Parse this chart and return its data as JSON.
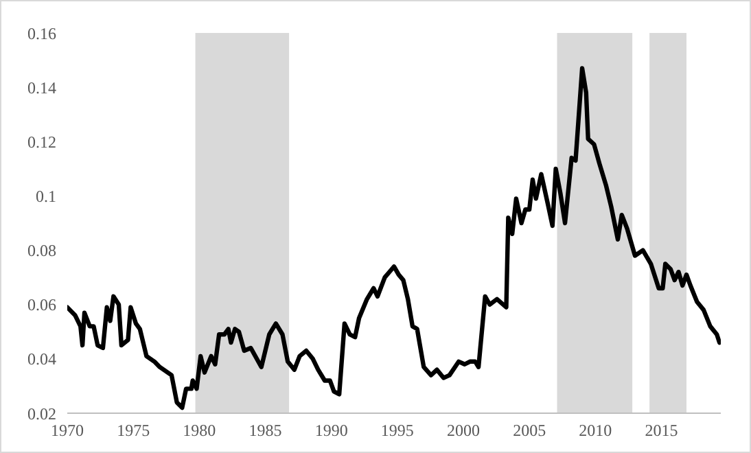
{
  "chart_data": {
    "type": "line",
    "xlim": [
      1970,
      2019.5
    ],
    "xticks": [
      1970,
      1975,
      1980,
      1985,
      1990,
      1995,
      2000,
      2005,
      2010,
      2015
    ],
    "ylim": [
      0.02,
      0.16
    ],
    "yticks": [
      0.02,
      0.04,
      0.06,
      0.08,
      0.1,
      0.12,
      0.14,
      0.16
    ],
    "grid": false,
    "legend": false,
    "marker": "none",
    "line_style": "solid",
    "bands": [
      {
        "axis": "x",
        "from": 1979.7,
        "to": 1986.8,
        "color": "#d9d9d9"
      },
      {
        "axis": "x",
        "from": 2007.1,
        "to": 2012.8,
        "color": "#d9d9d9"
      },
      {
        "axis": "x",
        "from": 2014.1,
        "to": 2016.9,
        "color": "#d9d9d9"
      }
    ],
    "series": [
      {
        "color": "#000000",
        "x": [
          1970.0,
          1970.6,
          1971.0,
          1971.15,
          1971.3,
          1971.7,
          1972.0,
          1972.3,
          1972.7,
          1973.0,
          1973.25,
          1973.5,
          1973.9,
          1974.1,
          1974.6,
          1974.8,
          1975.2,
          1975.5,
          1976.0,
          1976.6,
          1977.0,
          1977.6,
          1977.9,
          1978.3,
          1978.7,
          1979.0,
          1979.4,
          1979.5,
          1979.8,
          1980.1,
          1980.4,
          1980.9,
          1981.2,
          1981.5,
          1981.9,
          1982.2,
          1982.4,
          1982.7,
          1983.0,
          1983.4,
          1983.9,
          1984.7,
          1985.3,
          1985.8,
          1986.3,
          1986.7,
          1987.2,
          1987.6,
          1988.1,
          1988.6,
          1989.0,
          1989.5,
          1989.9,
          1990.2,
          1990.6,
          1991.0,
          1991.4,
          1991.8,
          1992.1,
          1992.7,
          1993.2,
          1993.5,
          1994.05,
          1994.4,
          1994.75,
          1995.1,
          1995.45,
          1995.8,
          1996.15,
          1996.5,
          1997.0,
          1997.55,
          1998.0,
          1998.5,
          1998.95,
          1999.65,
          2000.1,
          2000.5,
          2000.9,
          2001.15,
          2001.65,
          2002.0,
          2002.55,
          2003.25,
          2003.4,
          2003.7,
          2004.0,
          2004.4,
          2004.7,
          2005.0,
          2005.25,
          2005.5,
          2005.9,
          2006.4,
          2006.75,
          2007.0,
          2007.35,
          2007.7,
          2008.2,
          2008.5,
          2009.0,
          2009.3,
          2009.45,
          2009.9,
          2010.3,
          2010.8,
          2011.2,
          2011.7,
          2012.0,
          2012.4,
          2013.0,
          2013.6,
          2014.2,
          2014.8,
          2015.1,
          2015.3,
          2015.7,
          2016.0,
          2016.3,
          2016.6,
          2016.9,
          2017.2,
          2017.7,
          2018.2,
          2018.7,
          2019.2,
          2019.4
        ],
        "values": [
          0.059,
          0.056,
          0.052,
          0.045,
          0.057,
          0.052,
          0.052,
          0.045,
          0.044,
          0.059,
          0.054,
          0.063,
          0.06,
          0.045,
          0.047,
          0.059,
          0.053,
          0.051,
          0.041,
          0.039,
          0.037,
          0.035,
          0.034,
          0.024,
          0.022,
          0.029,
          0.029,
          0.032,
          0.029,
          0.041,
          0.035,
          0.041,
          0.038,
          0.049,
          0.049,
          0.051,
          0.046,
          0.051,
          0.05,
          0.043,
          0.044,
          0.037,
          0.049,
          0.053,
          0.049,
          0.039,
          0.036,
          0.041,
          0.043,
          0.04,
          0.036,
          0.032,
          0.032,
          0.028,
          0.027,
          0.053,
          0.049,
          0.048,
          0.055,
          0.062,
          0.066,
          0.063,
          0.07,
          0.072,
          0.074,
          0.071,
          0.069,
          0.062,
          0.052,
          0.051,
          0.037,
          0.034,
          0.036,
          0.033,
          0.034,
          0.039,
          0.038,
          0.039,
          0.039,
          0.037,
          0.063,
          0.06,
          0.062,
          0.059,
          0.092,
          0.086,
          0.099,
          0.09,
          0.095,
          0.095,
          0.106,
          0.099,
          0.108,
          0.097,
          0.089,
          0.11,
          0.101,
          0.09,
          0.114,
          0.113,
          0.147,
          0.138,
          0.121,
          0.119,
          0.112,
          0.104,
          0.096,
          0.084,
          0.093,
          0.088,
          0.078,
          0.08,
          0.075,
          0.066,
          0.066,
          0.075,
          0.073,
          0.069,
          0.072,
          0.067,
          0.071,
          0.067,
          0.061,
          0.058,
          0.052,
          0.049,
          0.046
        ]
      }
    ]
  }
}
